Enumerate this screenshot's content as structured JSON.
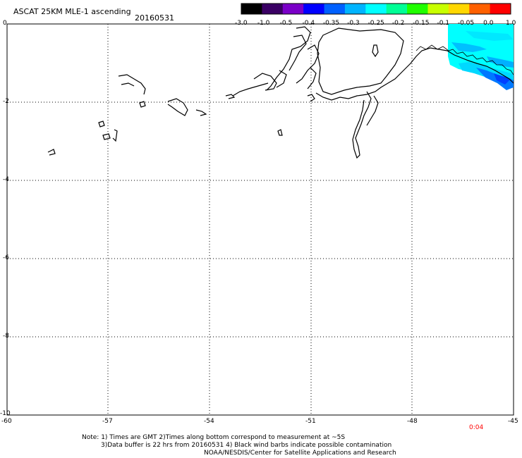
{
  "header": {
    "title": "ASCAT 25KM MLE-1 ascending",
    "date": "20160531"
  },
  "colorbar": {
    "labels": [
      "-3.0",
      "-1.0",
      "-0.5",
      "-0.4",
      "-0.35",
      "-0.3",
      "-0.25",
      "-0.2",
      "-0.15",
      "-0.1",
      "-0.05",
      "0.0",
      "1.0"
    ],
    "colors": [
      "#000000",
      "#3a0064",
      "#7a00c8",
      "#0000ff",
      "#0060ff",
      "#00b4ff",
      "#00ffff",
      "#00ff96",
      "#20ff00",
      "#c8ff00",
      "#ffd700",
      "#ff6000",
      "#ff0000"
    ]
  },
  "axes": {
    "lat_labels": [
      "0",
      "-2",
      "-4",
      "-6",
      "-8",
      "-10"
    ],
    "lon_labels": [
      "-60",
      "-57",
      "-54",
      "-51",
      "-48",
      "-45"
    ],
    "lat_range": [
      -10,
      0
    ],
    "lon_range": [
      -60,
      -45
    ],
    "grid": "dotted"
  },
  "time_label": "0:04",
  "notes": {
    "line1": "Note: 1) Times are GMT 2)Times along bottom correspond to measurement at ~5S",
    "line2": "3)Data buffer is 22 hrs from 20160531 4) Black wind barbs indicate possible contamination",
    "line3": "NOAA/NESDIS/Center for Satellite Applications and Research"
  }
}
